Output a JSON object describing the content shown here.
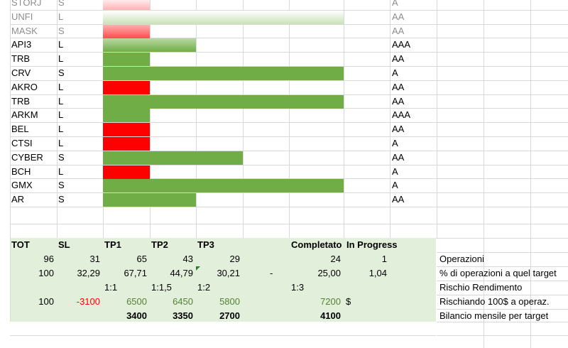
{
  "trades": [
    {
      "ticker": "STORJ",
      "side": "S",
      "rating": "A"
    },
    {
      "ticker": "UNFI",
      "side": "L",
      "rating": "AA"
    },
    {
      "ticker": "MASK",
      "side": "S",
      "rating": "AA"
    },
    {
      "ticker": "API3",
      "side": "L",
      "rating": "AAA"
    },
    {
      "ticker": "TRB",
      "side": "L",
      "rating": "AA"
    },
    {
      "ticker": "CRV",
      "side": "S",
      "rating": "A"
    },
    {
      "ticker": "AKRO",
      "side": "L",
      "rating": "AA"
    },
    {
      "ticker": "TRB",
      "side": "L",
      "rating": "AA"
    },
    {
      "ticker": "ARKM",
      "side": "L",
      "rating": "AAA"
    },
    {
      "ticker": "BEL",
      "side": "L",
      "rating": "AA"
    },
    {
      "ticker": "CTSI",
      "side": "L",
      "rating": "A"
    },
    {
      "ticker": "CYBER",
      "side": "S",
      "rating": "AA"
    },
    {
      "ticker": "BCH",
      "side": "L",
      "rating": "A"
    },
    {
      "ticker": "GMX",
      "side": "S",
      "rating": "A"
    },
    {
      "ticker": "AR",
      "side": "S",
      "rating": "AA"
    }
  ],
  "colors": {
    "win": "#70ad47",
    "loss": "#ff0000",
    "summary_bg": "#e2efda",
    "negative": "#ff0000",
    "positive": "#548235"
  },
  "summary": {
    "headers": {
      "tot": "TOT",
      "sl": "SL",
      "tp1": "TP1",
      "tp2": "TP2",
      "tp3": "TP3",
      "completato": "Completato",
      "in_progress": "In Progress"
    },
    "operazioni": {
      "tot": "96",
      "sl": "31",
      "tp1": "65",
      "tp2": "43",
      "tp3": "29",
      "completato": "24",
      "in_progress": "1",
      "label": "Operazioni"
    },
    "percent": {
      "tot": "100",
      "sl": "32,29",
      "tp1": "67,71",
      "tp2": "44,79",
      "tp3": "30,21",
      "dash": "-",
      "completato": "25,00",
      "in_progress": "1,04",
      "label": "% di operazioni a quel target"
    },
    "risk": {
      "tp1": "1:1",
      "tp2": "1:1,5",
      "tp3": "1:2",
      "completato": "1:3",
      "label": "Rischio Rendimento"
    },
    "risking": {
      "tot": "100",
      "sl": "-3100",
      "tp1": "6500",
      "tp2": "6450",
      "tp3": "5800",
      "completato": "7200",
      "currency": "$",
      "label": "Rischiando 100$ a operaz."
    },
    "monthly": {
      "tp1": "3400",
      "tp2": "3350",
      "tp3": "2700",
      "completato": "4100",
      "label": "Bilancio mensile per target"
    }
  }
}
